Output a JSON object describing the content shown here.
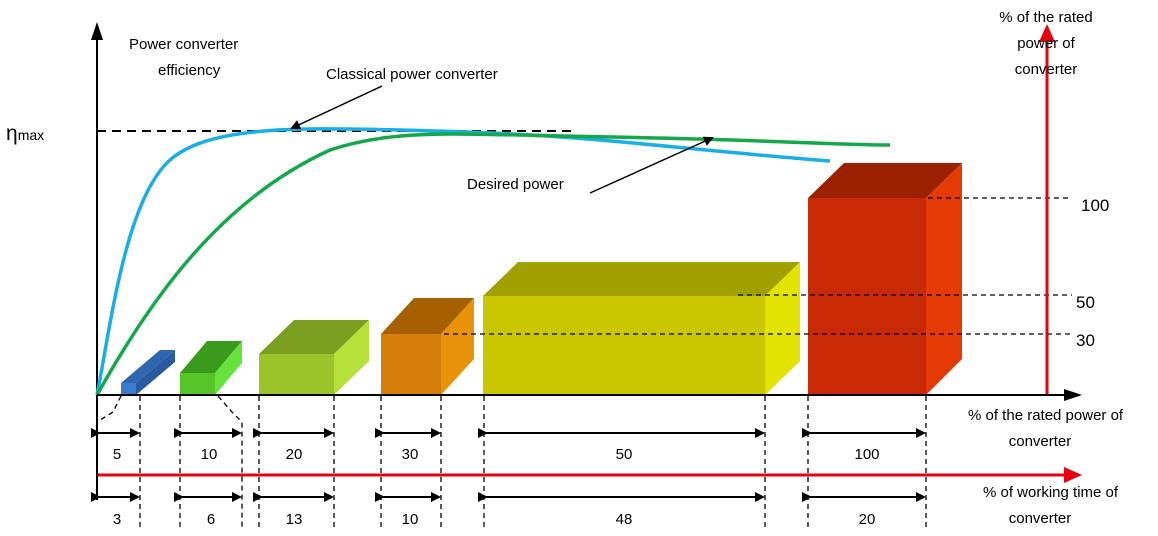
{
  "labels": {
    "eta_symbol": "η",
    "eta_subscript": "max",
    "efficiency_line1": "Power converter",
    "efficiency_line2": "efficiency",
    "classical": "Classical power converter",
    "desired": "Desired power",
    "right_axis_line1": "% of the rated",
    "right_axis_line2": "power of",
    "right_axis_line3": "converter",
    "rated_axis_line1": "% of the rated power of",
    "rated_axis_line2": "converter",
    "time_axis_line1": "% of working time of",
    "time_axis_line2": "converter"
  },
  "right_ticks": [
    "100",
    "50",
    "30"
  ],
  "rated_power_values": [
    "5",
    "10",
    "20",
    "30",
    "50",
    "100"
  ],
  "working_time_values": [
    "3",
    "6",
    "13",
    "10",
    "48",
    "20"
  ],
  "colors": {
    "axis": "#000000",
    "right_axis": "#e8000f",
    "classical_curve": "#1aaee6",
    "desired_curve": "#14a84a",
    "blocks": [
      "#3a7dd0",
      "#55c52a",
      "#9bc42a",
      "#d47f0a",
      "#c9c800",
      "#c82a05"
    ]
  }
}
